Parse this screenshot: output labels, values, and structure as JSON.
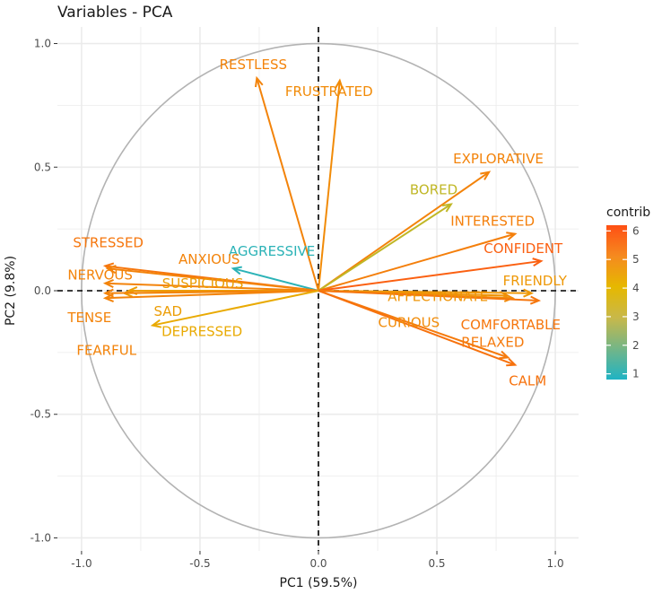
{
  "chart_data": {
    "type": "scatter",
    "title": "Variables - PCA",
    "xlabel": "PC1 (59.5%)",
    "ylabel": "PC2 (9.8%)",
    "xlim": [
      -1.1,
      1.1
    ],
    "ylim": [
      -1.05,
      1.07
    ],
    "x_ticks": [
      -1.0,
      -0.5,
      0.0,
      0.5,
      1.0
    ],
    "x_tick_labels": [
      "-1.0",
      "-0.5",
      "0.0",
      "0.5",
      "1.0"
    ],
    "y_ticks": [
      -1.0,
      -0.5,
      0.0,
      0.5,
      1.0
    ],
    "y_tick_labels": [
      "-1.0",
      "-0.5",
      "0.0",
      "0.5",
      "1.0"
    ],
    "grid": true,
    "legend": {
      "title": "contrib",
      "placement": "right",
      "ticks": [
        "1",
        "2",
        "3",
        "4",
        "5",
        "6"
      ],
      "min": 0.8,
      "max": 6.2
    },
    "colors": {
      "low": "#1fb3c4",
      "mid": "#e6b800",
      "high": "#ff4f14",
      "circle": "#b3b3b3",
      "grid": "#ebebeb",
      "axis_dash": "#000000"
    },
    "variables": [
      {
        "name": "RESTLESS",
        "x": -0.26,
        "y": 0.86,
        "contrib": 5.0,
        "label": "RESTLESS"
      },
      {
        "name": "FRUSTRATED",
        "x": 0.09,
        "y": 0.85,
        "contrib": 4.8,
        "label": "FRUSTRATED"
      },
      {
        "name": "EXPLORATIVE",
        "x": 0.72,
        "y": 0.48,
        "contrib": 5.0,
        "label": "EXPLORATIVE"
      },
      {
        "name": "BORED",
        "x": 0.56,
        "y": 0.35,
        "contrib": 3.2,
        "label": "BORED"
      },
      {
        "name": "INTERESTED",
        "x": 0.83,
        "y": 0.23,
        "contrib": 5.1,
        "label": "INTERESTED"
      },
      {
        "name": "CONFIDENT",
        "x": 0.94,
        "y": 0.12,
        "contrib": 5.8,
        "label": "CONFIDENT"
      },
      {
        "name": "FRIENDLY",
        "x": 0.9,
        "y": -0.01,
        "contrib": 4.5,
        "label": "FRIENDLY"
      },
      {
        "name": "AFFECTIONATE",
        "x": 0.8,
        "y": -0.02,
        "contrib": 4.6,
        "label": "AFFECTIONATE"
      },
      {
        "name": "CURIOUS",
        "x": 0.82,
        "y": -0.03,
        "contrib": 4.8,
        "label": "CURIOUS"
      },
      {
        "name": "COMFORTABLE",
        "x": 0.93,
        "y": -0.04,
        "contrib": 5.3,
        "label": "COMFORTABLE"
      },
      {
        "name": "RELAXED",
        "x": 0.8,
        "y": -0.27,
        "contrib": 5.2,
        "label": "RELAXED"
      },
      {
        "name": "CALM",
        "x": 0.83,
        "y": -0.3,
        "contrib": 5.4,
        "label": "CALM"
      },
      {
        "name": "AGGRESSIVE",
        "x": -0.36,
        "y": 0.09,
        "contrib": 1.0,
        "label": "AGGRESSIVE"
      },
      {
        "name": "STRESSED",
        "x": -0.9,
        "y": 0.1,
        "contrib": 5.3,
        "label": "STRESSED"
      },
      {
        "name": "ANXIOUS",
        "x": -0.89,
        "y": 0.09,
        "contrib": 5.0,
        "label": "ANXIOUS"
      },
      {
        "name": "NERVOUS",
        "x": -0.9,
        "y": 0.03,
        "contrib": 5.0,
        "label": "NERVOUS"
      },
      {
        "name": "SUSPICIOUS",
        "x": -0.8,
        "y": 0.0,
        "contrib": 4.4,
        "label": "SUSPICIOUS"
      },
      {
        "name": "SAD",
        "x": -0.82,
        "y": -0.01,
        "contrib": 4.4,
        "label": "SAD"
      },
      {
        "name": "TENSE",
        "x": -0.9,
        "y": -0.01,
        "contrib": 5.0,
        "label": "TENSE"
      },
      {
        "name": "FEARFUL",
        "x": -0.9,
        "y": -0.03,
        "contrib": 5.0,
        "label": "FEARFUL"
      },
      {
        "name": "DEPRESSED",
        "x": -0.7,
        "y": -0.14,
        "contrib": 4.1,
        "label": "DEPRESSED"
      }
    ]
  }
}
